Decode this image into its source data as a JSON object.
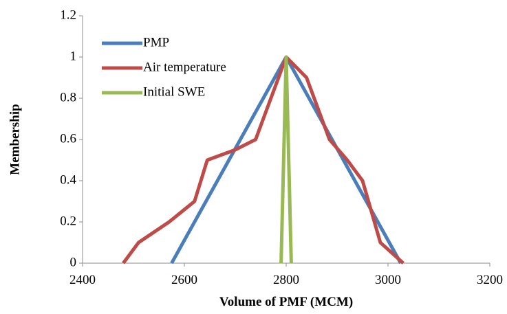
{
  "chart_data": {
    "type": "line",
    "title": "",
    "xlabel": "Volume of PMF (MCM)",
    "ylabel": "Membership",
    "xlim": [
      2400,
      3200
    ],
    "ylim": [
      0,
      1.2
    ],
    "x_ticks": [
      "2400",
      "2600",
      "2800",
      "3000",
      "3200"
    ],
    "y_ticks": [
      "0",
      "0.2",
      "0.4",
      "0.6",
      "0.8",
      "1",
      "1.2"
    ],
    "grid": false,
    "legend_position": "top-left",
    "series": [
      {
        "name": "PMP",
        "color": "#4a7ebb",
        "x": [
          2575,
          2800,
          3025
        ],
        "y": [
          0,
          1,
          0
        ]
      },
      {
        "name": "Air temperature",
        "color": "#be4b48",
        "x": [
          2480,
          2510,
          2570,
          2620,
          2645,
          2700,
          2740,
          2800,
          2840,
          2885,
          2920,
          2950,
          2985,
          3030
        ],
        "y": [
          0,
          0.1,
          0.2,
          0.3,
          0.5,
          0.55,
          0.6,
          1,
          0.9,
          0.6,
          0.5,
          0.4,
          0.1,
          0
        ]
      },
      {
        "name": "Initial SWE",
        "color": "#98b954",
        "x": [
          2790,
          2800,
          2810
        ],
        "y": [
          0,
          1,
          0
        ]
      }
    ]
  }
}
